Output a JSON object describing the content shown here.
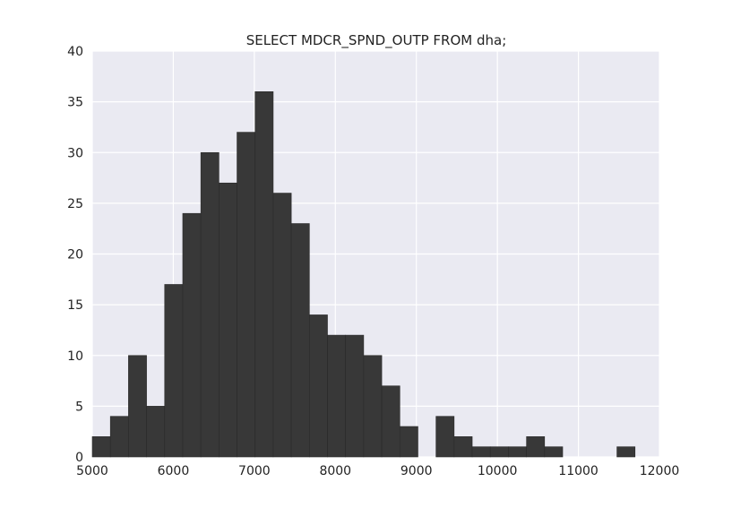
{
  "chart_data": {
    "type": "bar",
    "title": "SELECT MDCR_SPND_OUTP FROM dha;",
    "xlabel": "",
    "ylabel": "",
    "xlim": [
      5000,
      12000
    ],
    "ylim": [
      0,
      40
    ],
    "grid": true,
    "x_ticks": [
      "5000",
      "6000",
      "7000",
      "8000",
      "9000",
      "10000",
      "11000",
      "12000"
    ],
    "y_ticks": [
      "0",
      "5",
      "10",
      "15",
      "20",
      "25",
      "30",
      "35",
      "40"
    ],
    "bin_start": 5000,
    "bin_width": 223.3,
    "values": [
      2,
      4,
      10,
      5,
      17,
      24,
      30,
      27,
      32,
      36,
      26,
      23,
      14,
      12,
      12,
      10,
      7,
      3,
      0,
      4,
      2,
      1,
      1,
      1,
      2,
      1,
      0,
      0,
      0,
      1
    ],
    "colors": {
      "bar": "#383838",
      "background": "#eaeaf2",
      "grid": "#ffffff"
    }
  }
}
